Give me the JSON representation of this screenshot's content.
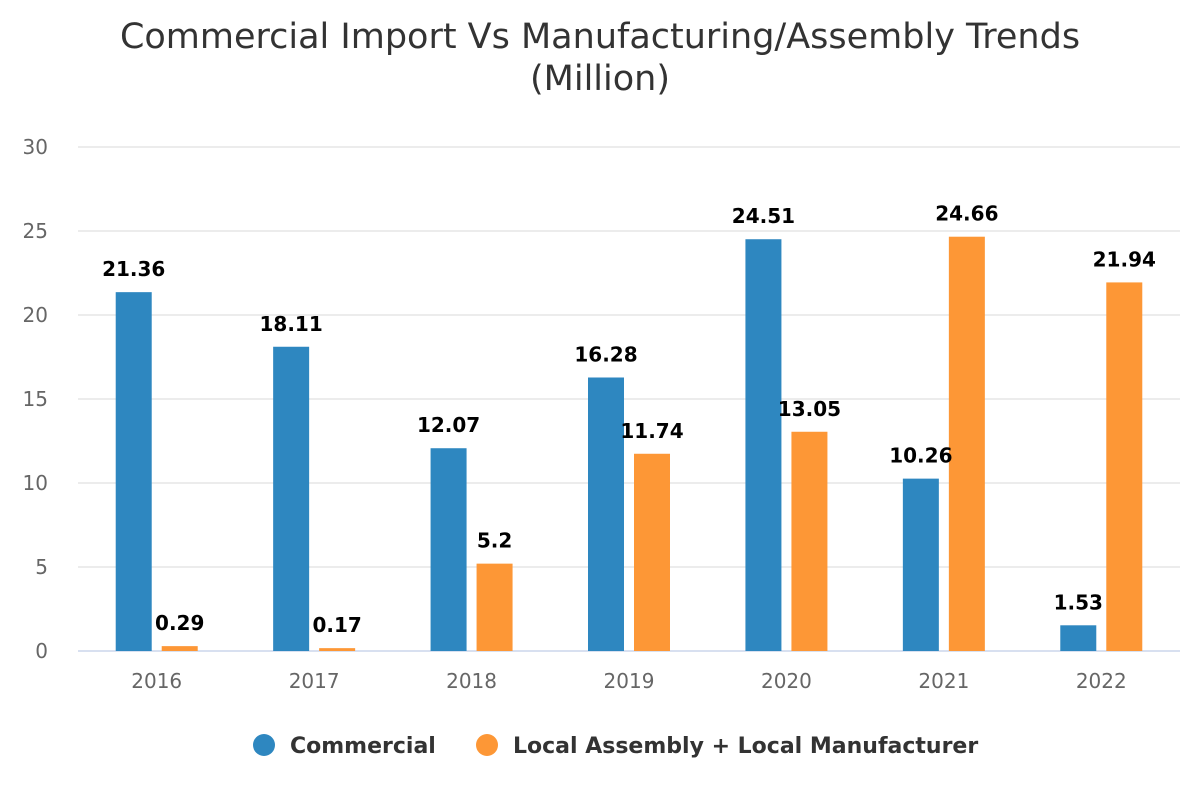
{
  "chart_data": {
    "type": "bar",
    "title": "Commercial Import Vs Manufacturing/Assembly Trends (Million)",
    "title_lines": [
      "Commercial Import Vs Manufacturing/Assembly Trends",
      "(Million)"
    ],
    "categories": [
      "2016",
      "2017",
      "2018",
      "2019",
      "2020",
      "2021",
      "2022"
    ],
    "series": [
      {
        "name": "Commercial",
        "color": "#2e87c0",
        "values": [
          21.36,
          18.11,
          12.07,
          16.28,
          24.51,
          10.26,
          1.53
        ]
      },
      {
        "name": "Local Assembly + Local Manufacturer",
        "color": "#fd9736",
        "values": [
          0.29,
          0.17,
          5.2,
          11.74,
          13.05,
          24.66,
          21.94
        ]
      }
    ],
    "ylim": [
      0,
      30
    ],
    "yticks": [
      0,
      5,
      10,
      15,
      20,
      25,
      30
    ],
    "xlabel": "",
    "ylabel": "",
    "grid": true,
    "legend_position": "bottom"
  }
}
